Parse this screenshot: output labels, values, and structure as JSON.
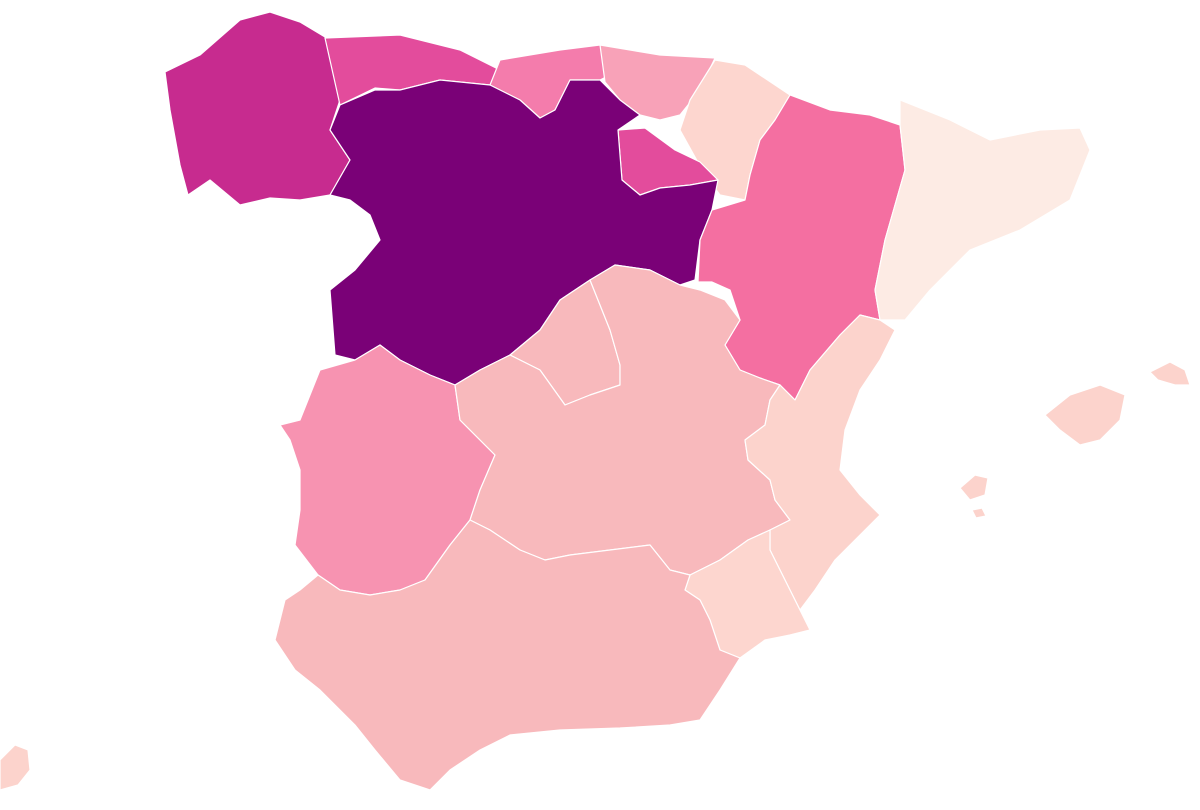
{
  "map": {
    "type": "choropleth",
    "country": "Spain",
    "title": "",
    "legend": null,
    "regions": [
      {
        "id": "galicia",
        "color": "#c72b8f",
        "level": 5
      },
      {
        "id": "asturias",
        "color": "#e34c9c",
        "level": 4
      },
      {
        "id": "cantabria",
        "color": "#f47cac",
        "level": 3
      },
      {
        "id": "pais-vasco",
        "color": "#f8a2b8",
        "level": 2
      },
      {
        "id": "navarra",
        "color": "#fdd6cf",
        "level": 1
      },
      {
        "id": "la-rioja",
        "color": "#e34c9c",
        "level": 4
      },
      {
        "id": "castilla-y-leon",
        "color": "#7a0177",
        "level": 6
      },
      {
        "id": "aragon",
        "color": "#f46fa1",
        "level": 3
      },
      {
        "id": "cataluna",
        "color": "#fdebe4",
        "level": 0
      },
      {
        "id": "madrid",
        "color": "#f8b9bc",
        "level": 2
      },
      {
        "id": "extremadura",
        "color": "#f793b1",
        "level": 3
      },
      {
        "id": "castilla-la-mancha",
        "color": "#f8b9bc",
        "level": 2
      },
      {
        "id": "comunidad-valenciana",
        "color": "#fcd3cc",
        "level": 1
      },
      {
        "id": "murcia",
        "color": "#fdd6cf",
        "level": 1
      },
      {
        "id": "andalucia",
        "color": "#f8b9bc",
        "level": 2
      },
      {
        "id": "islas-baleares",
        "color": "#fcd3cc",
        "level": 1
      },
      {
        "id": "ceuta",
        "color": "#fcd3cc",
        "level": 1
      }
    ]
  }
}
